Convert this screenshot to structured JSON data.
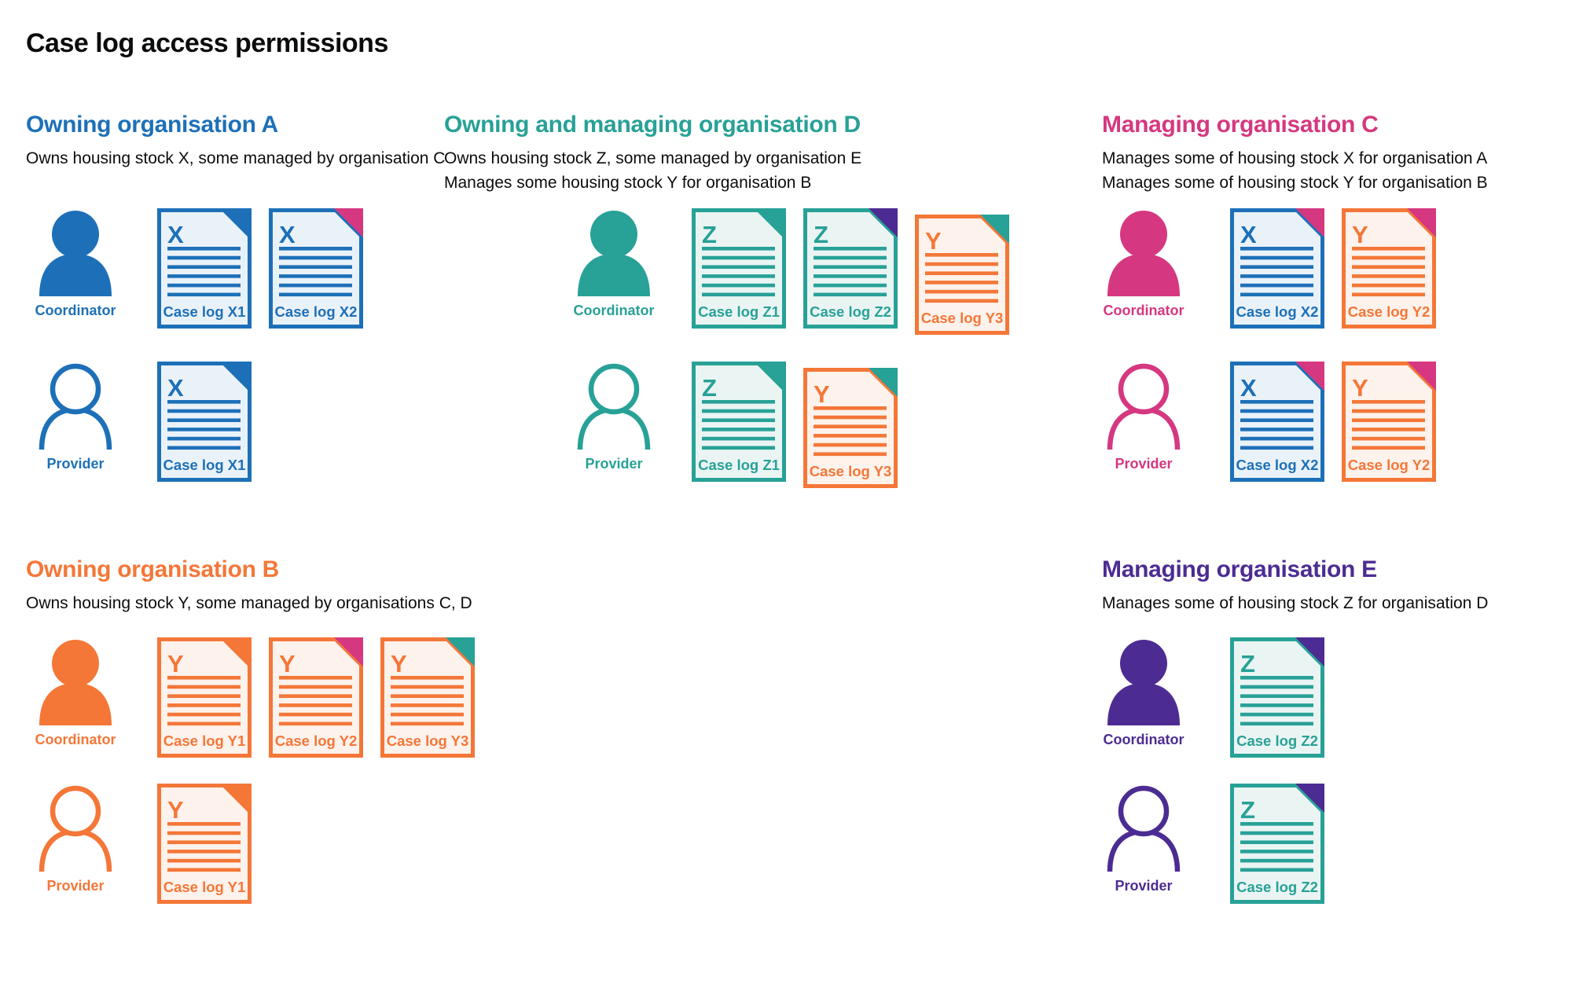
{
  "page": {
    "title": "Case log access permissions",
    "background": "#ffffff"
  },
  "colors": {
    "text": "#0b0c0c",
    "blue": "#1d70b8",
    "blue_tint": "#eaf2f9",
    "teal": "#28a197",
    "teal_tint": "#eaf5f3",
    "orange": "#f47738",
    "orange_tint": "#fdf2ec",
    "pink": "#d53880",
    "purple": "#4c2c92"
  },
  "sections": [
    {
      "id": "org-a",
      "heading": "Owning organisation A",
      "color": "blue",
      "description_lines": [
        "Owns housing stock X, some managed by organisation C"
      ],
      "rows": [
        {
          "role": "Coordinator",
          "person": "filled",
          "docs": [
            {
              "letter": "X",
              "label": "Case log X1",
              "color": "blue",
              "fold": "blue"
            },
            {
              "letter": "X",
              "label": "Case log X2",
              "color": "blue",
              "fold": "pink"
            }
          ]
        },
        {
          "role": "Provider",
          "person": "outline",
          "docs": [
            {
              "letter": "X",
              "label": "Case log X1",
              "color": "blue",
              "fold": "blue"
            }
          ]
        }
      ]
    },
    {
      "id": "org-d",
      "heading": "Owning and managing organisation D",
      "color": "teal",
      "description_lines": [
        "Owns housing stock Z, some managed by organisation E",
        "Manages some housing stock Y for organisation B"
      ],
      "rows": [
        {
          "role": "Coordinator",
          "person": "filled",
          "docs": [
            {
              "letter": "Z",
              "label": "Case log Z1",
              "color": "teal",
              "fold": "teal"
            },
            {
              "letter": "Z",
              "label": "Case log Z2",
              "color": "teal",
              "fold": "purple"
            },
            {
              "letter": "Y",
              "label": "Case log Y3",
              "color": "orange",
              "fold": "teal",
              "offset_down": true
            }
          ]
        },
        {
          "role": "Provider",
          "person": "outline",
          "docs": [
            {
              "letter": "Z",
              "label": "Case log Z1",
              "color": "teal",
              "fold": "teal"
            },
            {
              "letter": "Y",
              "label": "Case log Y3",
              "color": "orange",
              "fold": "teal",
              "offset_down": true
            }
          ]
        }
      ]
    },
    {
      "id": "org-c",
      "heading": "Managing organisation C",
      "color": "pink",
      "description_lines": [
        "Manages some of housing stock X for organisation A",
        "Manages some of housing stock Y for organisation B"
      ],
      "rows": [
        {
          "role": "Coordinator",
          "person": "filled",
          "docs": [
            {
              "letter": "X",
              "label": "Case log X2",
              "color": "blue",
              "fold": "pink"
            },
            {
              "letter": "Y",
              "label": "Case log Y2",
              "color": "orange",
              "fold": "pink"
            }
          ]
        },
        {
          "role": "Provider",
          "person": "outline",
          "docs": [
            {
              "letter": "X",
              "label": "Case log X2",
              "color": "blue",
              "fold": "pink"
            },
            {
              "letter": "Y",
              "label": "Case log Y2",
              "color": "orange",
              "fold": "pink"
            }
          ]
        }
      ]
    },
    {
      "id": "org-b",
      "heading": "Owning organisation B",
      "color": "orange",
      "description_lines": [
        "Owns housing stock Y, some managed by organisations C, D"
      ],
      "rows": [
        {
          "role": "Coordinator",
          "person": "filled",
          "docs": [
            {
              "letter": "Y",
              "label": "Case log Y1",
              "color": "orange",
              "fold": "orange"
            },
            {
              "letter": "Y",
              "label": "Case log Y2",
              "color": "orange",
              "fold": "pink"
            },
            {
              "letter": "Y",
              "label": "Case log Y3",
              "color": "orange",
              "fold": "teal"
            }
          ]
        },
        {
          "role": "Provider",
          "person": "outline",
          "docs": [
            {
              "letter": "Y",
              "label": "Case log Y1",
              "color": "orange",
              "fold": "orange"
            }
          ]
        }
      ]
    },
    {
      "id": "org-e",
      "heading": "Managing organisation E",
      "color": "purple",
      "description_lines": [
        "Manages some of housing stock Z for organisation D"
      ],
      "rows": [
        {
          "role": "Coordinator",
          "person": "filled",
          "docs": [
            {
              "letter": "Z",
              "label": "Case log Z2",
              "color": "teal",
              "fold": "purple"
            }
          ]
        },
        {
          "role": "Provider",
          "person": "outline",
          "docs": [
            {
              "letter": "Z",
              "label": "Case log Z2",
              "color": "teal",
              "fold": "purple"
            }
          ]
        }
      ]
    }
  ]
}
